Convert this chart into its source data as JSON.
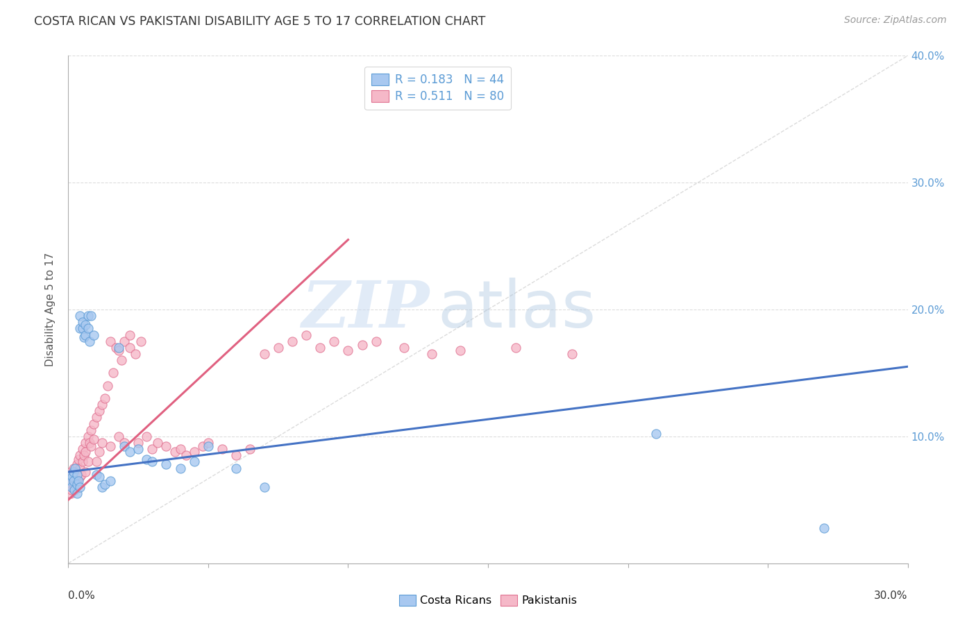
{
  "title": "COSTA RICAN VS PAKISTANI DISABILITY AGE 5 TO 17 CORRELATION CHART",
  "source": "Source: ZipAtlas.com",
  "ylabel": "Disability Age 5 to 17",
  "xmin": 0.0,
  "xmax": 0.3,
  "ymin": 0.0,
  "ymax": 0.4,
  "watermark_zip": "ZIP",
  "watermark_atlas": "atlas",
  "legend_blue_r": "R = 0.183",
  "legend_blue_n": "N = 44",
  "legend_pink_r": "R = 0.511",
  "legend_pink_n": "N = 80",
  "blue_fill": "#A8C8F0",
  "blue_edge": "#5B9BD5",
  "pink_fill": "#F5B8C8",
  "pink_edge": "#E07090",
  "blue_line": "#4472C4",
  "pink_line": "#E06080",
  "diag_color": "#CCCCCC",
  "grid_color": "#DDDDDD",
  "costa_rican_x": [
    0.0008,
    0.001,
    0.0012,
    0.0015,
    0.002,
    0.002,
    0.0022,
    0.0025,
    0.003,
    0.003,
    0.0032,
    0.0035,
    0.004,
    0.004,
    0.0042,
    0.005,
    0.005,
    0.0055,
    0.006,
    0.006,
    0.007,
    0.007,
    0.0075,
    0.008,
    0.009,
    0.01,
    0.011,
    0.012,
    0.013,
    0.015,
    0.018,
    0.02,
    0.022,
    0.025,
    0.028,
    0.03,
    0.035,
    0.04,
    0.045,
    0.05,
    0.06,
    0.07,
    0.21,
    0.27
  ],
  "costa_rican_y": [
    0.065,
    0.07,
    0.06,
    0.068,
    0.065,
    0.072,
    0.058,
    0.075,
    0.062,
    0.07,
    0.055,
    0.065,
    0.195,
    0.185,
    0.06,
    0.185,
    0.19,
    0.178,
    0.18,
    0.188,
    0.195,
    0.185,
    0.175,
    0.195,
    0.18,
    0.07,
    0.068,
    0.06,
    0.062,
    0.065,
    0.17,
    0.092,
    0.088,
    0.09,
    0.082,
    0.08,
    0.078,
    0.075,
    0.08,
    0.092,
    0.075,
    0.06,
    0.102,
    0.028
  ],
  "pakistani_x": [
    0.0005,
    0.0008,
    0.001,
    0.001,
    0.0012,
    0.0015,
    0.002,
    0.002,
    0.0022,
    0.0025,
    0.003,
    0.003,
    0.0032,
    0.0035,
    0.004,
    0.004,
    0.0042,
    0.0045,
    0.005,
    0.005,
    0.0055,
    0.006,
    0.006,
    0.0062,
    0.007,
    0.007,
    0.0075,
    0.008,
    0.008,
    0.009,
    0.009,
    0.01,
    0.01,
    0.011,
    0.011,
    0.012,
    0.012,
    0.013,
    0.014,
    0.015,
    0.015,
    0.016,
    0.017,
    0.018,
    0.018,
    0.019,
    0.02,
    0.02,
    0.022,
    0.022,
    0.024,
    0.025,
    0.026,
    0.028,
    0.03,
    0.032,
    0.035,
    0.038,
    0.04,
    0.042,
    0.045,
    0.048,
    0.05,
    0.055,
    0.06,
    0.065,
    0.07,
    0.075,
    0.08,
    0.085,
    0.09,
    0.095,
    0.1,
    0.105,
    0.11,
    0.12,
    0.13,
    0.14,
    0.16,
    0.18
  ],
  "pakistani_y": [
    0.06,
    0.055,
    0.065,
    0.072,
    0.058,
    0.068,
    0.06,
    0.075,
    0.062,
    0.07,
    0.065,
    0.078,
    0.072,
    0.082,
    0.068,
    0.085,
    0.075,
    0.07,
    0.08,
    0.09,
    0.085,
    0.072,
    0.095,
    0.088,
    0.1,
    0.08,
    0.095,
    0.105,
    0.092,
    0.11,
    0.098,
    0.115,
    0.08,
    0.12,
    0.088,
    0.125,
    0.095,
    0.13,
    0.14,
    0.092,
    0.175,
    0.15,
    0.17,
    0.1,
    0.168,
    0.16,
    0.175,
    0.095,
    0.18,
    0.17,
    0.165,
    0.095,
    0.175,
    0.1,
    0.09,
    0.095,
    0.092,
    0.088,
    0.09,
    0.085,
    0.088,
    0.092,
    0.095,
    0.09,
    0.085,
    0.09,
    0.165,
    0.17,
    0.175,
    0.18,
    0.17,
    0.175,
    0.168,
    0.172,
    0.175,
    0.17,
    0.165,
    0.168,
    0.17,
    0.165
  ],
  "blue_trend_x": [
    0.0,
    0.3
  ],
  "blue_trend_y": [
    0.072,
    0.155
  ],
  "pink_trend_x": [
    0.0,
    0.1
  ],
  "pink_trend_y": [
    0.05,
    0.255
  ]
}
